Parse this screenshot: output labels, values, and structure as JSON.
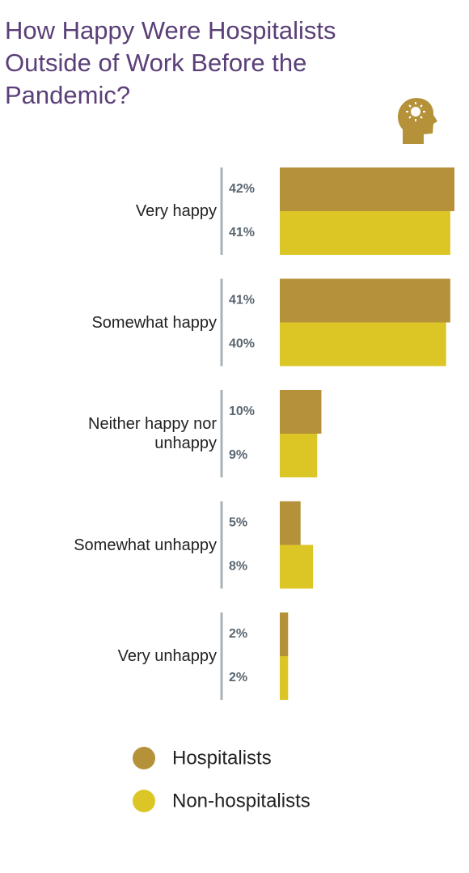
{
  "chart_data": {
    "type": "hbar",
    "title": "How Happy Were Hospitalists Outside of Work Before the Pandemic?",
    "categories": [
      "Very happy",
      "Somewhat happy",
      "Neither happy nor unhappy",
      "Somewhat unhappy",
      "Very unhappy"
    ],
    "series": [
      {
        "name": "Hospitalists",
        "color": "#b5913a",
        "values": [
          42,
          41,
          10,
          5,
          2
        ],
        "value_labels": [
          "42%",
          "41%",
          "10%",
          "5%",
          "2%"
        ]
      },
      {
        "name": "Non-hospitalists",
        "color": "#dcc626",
        "values": [
          41,
          40,
          9,
          8,
          2
        ],
        "value_labels": [
          "41%",
          "40%",
          "9%",
          "8%",
          "2%"
        ]
      }
    ]
  }
}
